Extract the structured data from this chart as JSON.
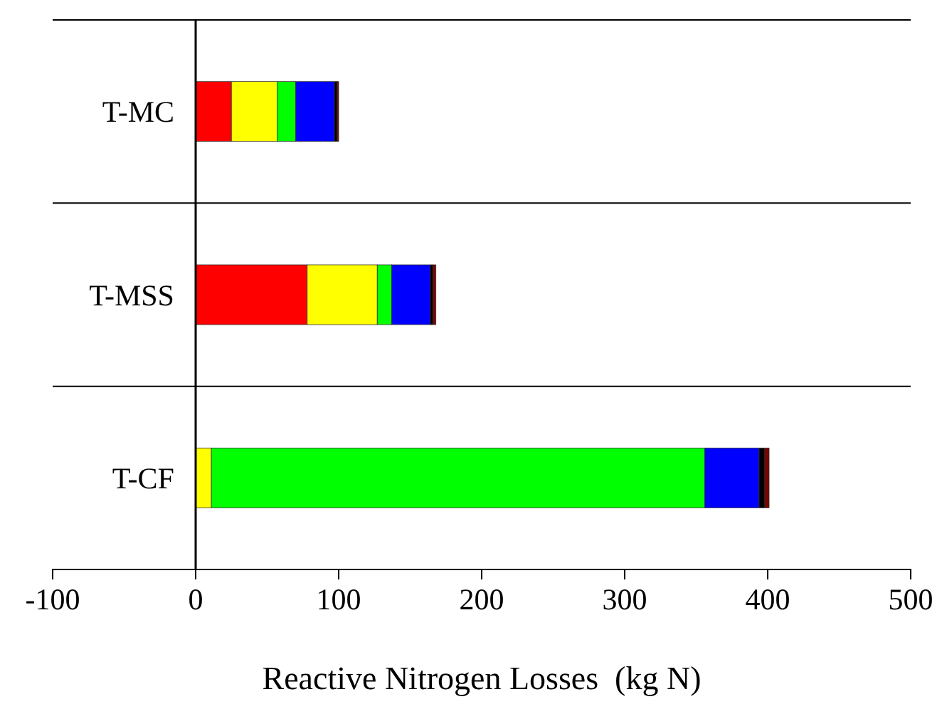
{
  "chart_data": {
    "type": "bar",
    "orientation": "horizontal",
    "stacked": true,
    "xlabel": "Reactive Nitrogen Losses  (kg N)",
    "categories": [
      "T-MC",
      "T-MSS",
      "T-CF"
    ],
    "xlim": [
      -100,
      500
    ],
    "xticks": [
      -100,
      0,
      100,
      200,
      300,
      400,
      500
    ],
    "grid": "y",
    "series": [
      {
        "color": "#ff0000",
        "values": [
          25,
          78,
          0
        ]
      },
      {
        "color": "#ffff00",
        "values": [
          32,
          49,
          11
        ]
      },
      {
        "color": "#00ff00",
        "values": [
          13,
          10,
          345
        ]
      },
      {
        "color": "#0000ff",
        "values": [
          27,
          27,
          38
        ]
      },
      {
        "color": "#000000",
        "values": [
          2,
          2,
          4
        ]
      },
      {
        "color": "#800000",
        "values": [
          1,
          2,
          3
        ]
      }
    ]
  }
}
